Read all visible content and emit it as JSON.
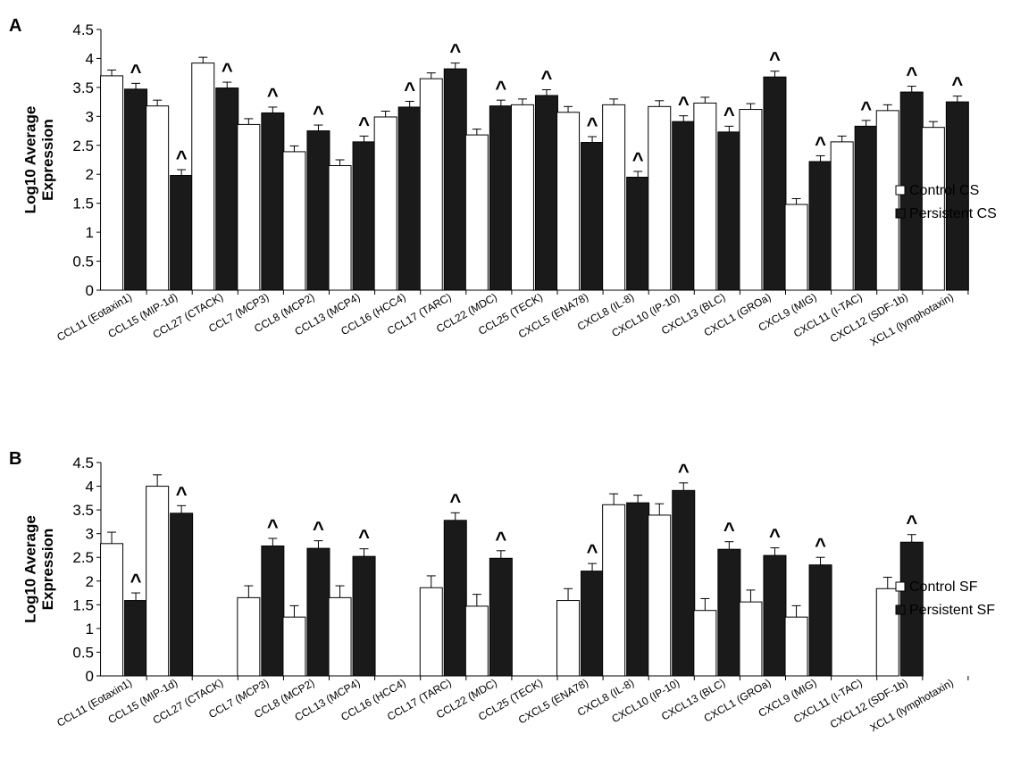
{
  "chart_data": [
    {
      "panel_label": "A",
      "type": "bar",
      "ylabel": [
        "Log10 Average",
        "Expression"
      ],
      "ylim": [
        0,
        4.5
      ],
      "yticks": [
        "0",
        "0.5",
        "1",
        "1.5",
        "2",
        "2.5",
        "3",
        "3.5",
        "4",
        "4.5"
      ],
      "grid": false,
      "legend_position": "right",
      "categories": [
        "CCL11 (Eotaxin1)",
        "CCL15 (MIP-1d)",
        "CCL27 (CTACK)",
        "CCL7 (MCP3)",
        "CCL8 (MCP2)",
        "CCL13 (MCP4)",
        "CCL16 (HCC4)",
        "CCL17 (TARC)",
        "CCL22 (MDC)",
        "CCL25 (TECK)",
        "CXCL5 (ENA78)",
        "CXCL8 (IL-8)",
        "CXCL10 (IP-10)",
        "CXCL13 (BLC)",
        "CXCL1 (GROa)",
        "CXCL9 (MIG)",
        "CXCL11 (I-TAC)",
        "CXCL12 (SDF-1b)",
        "XCL1 (lymphotaxin)"
      ],
      "series": [
        {
          "name": "Control CS",
          "color": "#ffffff",
          "values": [
            3.7,
            3.18,
            3.92,
            2.86,
            2.39,
            2.15,
            2.99,
            3.65,
            2.68,
            3.2,
            3.07,
            3.2,
            3.17,
            3.23,
            3.12,
            1.48,
            2.56,
            3.1,
            2.81
          ],
          "errors": [
            0.1,
            0.1,
            0.1,
            0.1,
            0.1,
            0.1,
            0.1,
            0.1,
            0.1,
            0.1,
            0.1,
            0.1,
            0.1,
            0.1,
            0.1,
            0.1,
            0.1,
            0.1,
            0.1
          ]
        },
        {
          "name": "Persistent CS",
          "color": "#1a1a1a",
          "values": [
            3.47,
            1.98,
            3.49,
            3.06,
            2.75,
            2.56,
            3.16,
            3.82,
            3.18,
            3.36,
            2.55,
            1.95,
            2.91,
            2.73,
            3.68,
            2.22,
            2.83,
            3.42,
            3.25
          ],
          "errors": [
            0.1,
            0.1,
            0.1,
            0.1,
            0.1,
            0.1,
            0.1,
            0.1,
            0.1,
            0.1,
            0.1,
            0.1,
            0.1,
            0.1,
            0.1,
            0.1,
            0.1,
            0.1,
            0.1
          ]
        }
      ],
      "annotations": {
        "symbol": "^",
        "marked_categories": [
          0,
          1,
          2,
          3,
          4,
          5,
          6,
          7,
          8,
          9,
          10,
          11,
          12,
          13,
          14,
          15,
          16,
          17,
          18
        ]
      }
    },
    {
      "panel_label": "B",
      "type": "bar",
      "ylabel": [
        "Log10 Average",
        "Expression"
      ],
      "ylim": [
        0,
        4.5
      ],
      "yticks": [
        "0",
        "0.5",
        "1",
        "1.5",
        "2",
        "2.5",
        "3",
        "3.5",
        "4",
        "4.5"
      ],
      "grid": false,
      "legend_position": "right",
      "categories": [
        "CCL11 (Eotaxin1)",
        "CCL15 (MIP-1d)",
        "CCL27 (CTACK)",
        "CCL7 (MCP3)",
        "CCL8 (MCP2)",
        "CCL13 (MCP4)",
        "CCL16 (HCC4)",
        "CCL17 (TARC)",
        "CCL22 (MDC)",
        "CCL25 (TECK)",
        "CXCL5 (ENA78)",
        "CXCL8 (IL-8)",
        "CXCL10 (IP-10)",
        "CXCL13 (BLC)",
        "CXCL1 (GROa)",
        "CXCL9 (MIG)",
        "CXCL11 (I-TAC)",
        "CXCL12 (SDF-1b)",
        "XCL1 (lymphotaxin)"
      ],
      "series": [
        {
          "name": "Control SF",
          "color": "#ffffff",
          "values": [
            2.79,
            4.0,
            null,
            1.65,
            1.24,
            1.65,
            null,
            1.86,
            1.47,
            null,
            1.59,
            3.61,
            3.39,
            1.38,
            1.56,
            1.24,
            null,
            1.84,
            null
          ],
          "errors": [
            0.24,
            0.24,
            null,
            0.25,
            0.24,
            0.25,
            null,
            0.25,
            0.25,
            null,
            0.25,
            0.23,
            0.24,
            0.25,
            0.25,
            0.24,
            null,
            0.24,
            null
          ]
        },
        {
          "name": "Persistent SF",
          "color": "#1a1a1a",
          "values": [
            1.59,
            3.43,
            null,
            2.74,
            2.69,
            2.52,
            null,
            3.28,
            2.48,
            null,
            2.21,
            3.65,
            3.91,
            2.67,
            2.54,
            2.34,
            null,
            2.82,
            null
          ],
          "errors": [
            0.16,
            0.16,
            null,
            0.16,
            0.16,
            0.16,
            null,
            0.16,
            0.16,
            null,
            0.16,
            0.16,
            0.16,
            0.16,
            0.16,
            0.16,
            null,
            0.16,
            null
          ]
        }
      ],
      "annotations": {
        "symbol": "^",
        "marked_categories": [
          0,
          1,
          3,
          4,
          5,
          7,
          8,
          10,
          12,
          13,
          14,
          15,
          17
        ]
      }
    }
  ]
}
